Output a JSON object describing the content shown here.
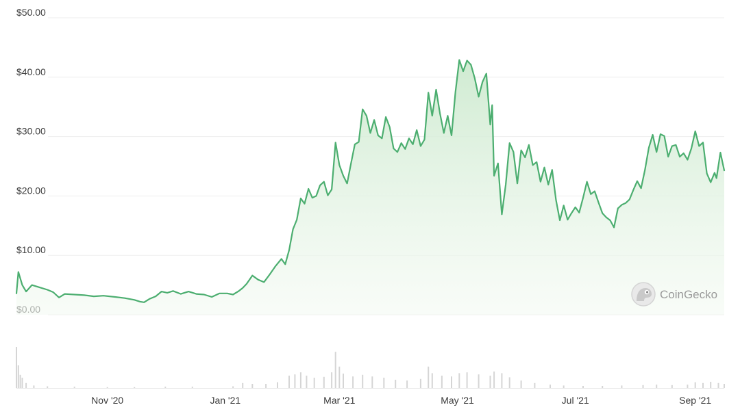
{
  "chart_data": {
    "type": "area",
    "y_unit_prefix": "$",
    "ylim": [
      0,
      50
    ],
    "y_ticks": [
      0,
      10,
      20,
      30,
      40,
      50
    ],
    "y_tick_labels": [
      "$0.00",
      "$10.00",
      "$20.00",
      "$30.00",
      "$40.00",
      "$50.00"
    ],
    "x_tick_labels": [
      "Nov '20",
      "Jan '21",
      "Mar '21",
      "May '21",
      "Jul '21",
      "Sep '21"
    ],
    "x_tick_dates": [
      "2020-11-01",
      "2021-01-01",
      "2021-03-01",
      "2021-05-01",
      "2021-07-01",
      "2021-09-01"
    ],
    "grid": true,
    "colors": {
      "line": "#4cae70",
      "fill": "#d7efd9",
      "volume": "#d5d5d5",
      "grid": "#eeeeee"
    },
    "watermark": {
      "text": "CoinGecko",
      "icon": "gecko-logo-icon"
    },
    "series": [
      {
        "points": [
          [
            "2020-09-15",
            3.6
          ],
          [
            "2020-09-16",
            7.2
          ],
          [
            "2020-09-18",
            5.0
          ],
          [
            "2020-09-20",
            3.9
          ],
          [
            "2020-09-23",
            5.0
          ],
          [
            "2020-09-27",
            4.6
          ],
          [
            "2020-10-01",
            4.2
          ],
          [
            "2020-10-04",
            3.8
          ],
          [
            "2020-10-07",
            2.9
          ],
          [
            "2020-10-10",
            3.5
          ],
          [
            "2020-10-15",
            3.4
          ],
          [
            "2020-10-20",
            3.3
          ],
          [
            "2020-10-25",
            3.1
          ],
          [
            "2020-10-30",
            3.2
          ],
          [
            "2020-11-05",
            3.0
          ],
          [
            "2020-11-10",
            2.8
          ],
          [
            "2020-11-15",
            2.5
          ],
          [
            "2020-11-18",
            2.2
          ],
          [
            "2020-11-20",
            2.1
          ],
          [
            "2020-11-23",
            2.7
          ],
          [
            "2020-11-26",
            3.1
          ],
          [
            "2020-11-29",
            3.9
          ],
          [
            "2020-12-02",
            3.7
          ],
          [
            "2020-12-05",
            4.0
          ],
          [
            "2020-12-09",
            3.5
          ],
          [
            "2020-12-13",
            3.9
          ],
          [
            "2020-12-17",
            3.5
          ],
          [
            "2020-12-21",
            3.4
          ],
          [
            "2020-12-25",
            3.0
          ],
          [
            "2020-12-29",
            3.6
          ],
          [
            "2021-01-02",
            3.6
          ],
          [
            "2021-01-05",
            3.4
          ],
          [
            "2021-01-08",
            4.0
          ],
          [
            "2021-01-10",
            4.5
          ],
          [
            "2021-01-12",
            5.2
          ],
          [
            "2021-01-15",
            6.6
          ],
          [
            "2021-01-18",
            5.9
          ],
          [
            "2021-01-21",
            5.5
          ],
          [
            "2021-01-24",
            6.8
          ],
          [
            "2021-01-27",
            8.2
          ],
          [
            "2021-01-30",
            9.4
          ],
          [
            "2021-02-01",
            8.5
          ],
          [
            "2021-02-03",
            10.9
          ],
          [
            "2021-02-05",
            14.4
          ],
          [
            "2021-02-07",
            16.0
          ],
          [
            "2021-02-09",
            19.6
          ],
          [
            "2021-02-11",
            18.7
          ],
          [
            "2021-02-13",
            21.2
          ],
          [
            "2021-02-15",
            19.7
          ],
          [
            "2021-02-17",
            20.0
          ],
          [
            "2021-02-19",
            21.8
          ],
          [
            "2021-02-21",
            22.4
          ],
          [
            "2021-02-23",
            20.1
          ],
          [
            "2021-02-25",
            21.1
          ],
          [
            "2021-02-27",
            29.0
          ],
          [
            "2021-03-01",
            25.2
          ],
          [
            "2021-03-03",
            23.4
          ],
          [
            "2021-03-05",
            22.1
          ],
          [
            "2021-03-07",
            25.5
          ],
          [
            "2021-03-09",
            28.7
          ],
          [
            "2021-03-11",
            29.1
          ],
          [
            "2021-03-13",
            34.6
          ],
          [
            "2021-03-15",
            33.5
          ],
          [
            "2021-03-17",
            30.6
          ],
          [
            "2021-03-19",
            32.8
          ],
          [
            "2021-03-21",
            30.2
          ],
          [
            "2021-03-23",
            29.7
          ],
          [
            "2021-03-25",
            33.3
          ],
          [
            "2021-03-27",
            31.6
          ],
          [
            "2021-03-29",
            28.0
          ],
          [
            "2021-03-31",
            27.4
          ],
          [
            "2021-04-02",
            28.9
          ],
          [
            "2021-04-04",
            27.9
          ],
          [
            "2021-04-06",
            29.7
          ],
          [
            "2021-04-08",
            28.7
          ],
          [
            "2021-04-10",
            31.1
          ],
          [
            "2021-04-12",
            28.4
          ],
          [
            "2021-04-14",
            29.5
          ],
          [
            "2021-04-16",
            37.4
          ],
          [
            "2021-04-18",
            33.5
          ],
          [
            "2021-04-20",
            37.9
          ],
          [
            "2021-04-22",
            33.9
          ],
          [
            "2021-04-24",
            30.6
          ],
          [
            "2021-04-26",
            33.5
          ],
          [
            "2021-04-28",
            30.2
          ],
          [
            "2021-04-30",
            37.5
          ],
          [
            "2021-05-02",
            42.9
          ],
          [
            "2021-05-04",
            41.0
          ],
          [
            "2021-05-06",
            42.8
          ],
          [
            "2021-05-08",
            42.1
          ],
          [
            "2021-05-10",
            39.8
          ],
          [
            "2021-05-12",
            36.7
          ],
          [
            "2021-05-14",
            39.2
          ],
          [
            "2021-05-16",
            40.6
          ],
          [
            "2021-05-18",
            32.0
          ],
          [
            "2021-05-19",
            35.3
          ],
          [
            "2021-05-20",
            23.4
          ],
          [
            "2021-05-22",
            25.5
          ],
          [
            "2021-05-24",
            16.9
          ],
          [
            "2021-05-26",
            21.9
          ],
          [
            "2021-05-28",
            28.9
          ],
          [
            "2021-05-30",
            27.4
          ],
          [
            "2021-06-01",
            22.1
          ],
          [
            "2021-06-03",
            27.7
          ],
          [
            "2021-06-05",
            26.5
          ],
          [
            "2021-06-07",
            28.6
          ],
          [
            "2021-06-09",
            25.2
          ],
          [
            "2021-06-11",
            25.7
          ],
          [
            "2021-06-13",
            22.4
          ],
          [
            "2021-06-15",
            24.8
          ],
          [
            "2021-06-17",
            21.9
          ],
          [
            "2021-06-19",
            24.4
          ],
          [
            "2021-06-21",
            19.3
          ],
          [
            "2021-06-23",
            15.9
          ],
          [
            "2021-06-25",
            18.4
          ],
          [
            "2021-06-27",
            16.0
          ],
          [
            "2021-06-29",
            17.1
          ],
          [
            "2021-07-01",
            18.1
          ],
          [
            "2021-07-03",
            17.2
          ],
          [
            "2021-07-05",
            19.7
          ],
          [
            "2021-07-07",
            22.4
          ],
          [
            "2021-07-09",
            20.3
          ],
          [
            "2021-07-11",
            20.8
          ],
          [
            "2021-07-13",
            18.9
          ],
          [
            "2021-07-15",
            17.1
          ],
          [
            "2021-07-17",
            16.4
          ],
          [
            "2021-07-19",
            15.9
          ],
          [
            "2021-07-21",
            14.7
          ],
          [
            "2021-07-23",
            17.9
          ],
          [
            "2021-07-25",
            18.5
          ],
          [
            "2021-07-27",
            18.8
          ],
          [
            "2021-07-29",
            19.4
          ],
          [
            "2021-07-31",
            21.0
          ],
          [
            "2021-08-02",
            22.5
          ],
          [
            "2021-08-04",
            21.3
          ],
          [
            "2021-08-06",
            24.4
          ],
          [
            "2021-08-08",
            28.1
          ],
          [
            "2021-08-10",
            30.3
          ],
          [
            "2021-08-12",
            27.4
          ],
          [
            "2021-08-14",
            30.4
          ],
          [
            "2021-08-16",
            30.1
          ],
          [
            "2021-08-18",
            26.6
          ],
          [
            "2021-08-20",
            28.4
          ],
          [
            "2021-08-22",
            28.6
          ],
          [
            "2021-08-24",
            26.6
          ],
          [
            "2021-08-26",
            27.2
          ],
          [
            "2021-08-28",
            26.1
          ],
          [
            "2021-08-30",
            28.0
          ],
          [
            "2021-09-01",
            30.9
          ],
          [
            "2021-09-03",
            28.4
          ],
          [
            "2021-09-05",
            29.0
          ],
          [
            "2021-09-07",
            23.8
          ],
          [
            "2021-09-09",
            22.3
          ],
          [
            "2021-09-11",
            23.9
          ],
          [
            "2021-09-12",
            23.0
          ],
          [
            "2021-09-14",
            27.3
          ],
          [
            "2021-09-16",
            24.3
          ]
        ]
      }
    ],
    "volume_bars": [
      [
        "2020-09-15",
        1.0
      ],
      [
        "2020-09-16",
        0.55
      ],
      [
        "2020-09-17",
        0.32
      ],
      [
        "2020-09-18",
        0.25
      ],
      [
        "2020-09-20",
        0.12
      ],
      [
        "2020-09-24",
        0.06
      ],
      [
        "2020-10-01",
        0.04
      ],
      [
        "2020-10-15",
        0.03
      ],
      [
        "2020-11-01",
        0.02
      ],
      [
        "2020-11-15",
        0.02
      ],
      [
        "2020-12-01",
        0.03
      ],
      [
        "2020-12-15",
        0.03
      ],
      [
        "2021-01-05",
        0.04
      ],
      [
        "2021-01-10",
        0.12
      ],
      [
        "2021-01-15",
        0.1
      ],
      [
        "2021-01-22",
        0.1
      ],
      [
        "2021-01-28",
        0.14
      ],
      [
        "2021-02-03",
        0.3
      ],
      [
        "2021-02-06",
        0.33
      ],
      [
        "2021-02-09",
        0.38
      ],
      [
        "2021-02-12",
        0.3
      ],
      [
        "2021-02-16",
        0.25
      ],
      [
        "2021-02-21",
        0.27
      ],
      [
        "2021-02-25",
        0.38
      ],
      [
        "2021-02-27",
        0.88
      ],
      [
        "2021-03-01",
        0.52
      ],
      [
        "2021-03-03",
        0.35
      ],
      [
        "2021-03-08",
        0.28
      ],
      [
        "2021-03-13",
        0.32
      ],
      [
        "2021-03-18",
        0.28
      ],
      [
        "2021-03-24",
        0.25
      ],
      [
        "2021-03-30",
        0.2
      ],
      [
        "2021-04-05",
        0.18
      ],
      [
        "2021-04-12",
        0.22
      ],
      [
        "2021-04-16",
        0.52
      ],
      [
        "2021-04-18",
        0.36
      ],
      [
        "2021-04-23",
        0.3
      ],
      [
        "2021-04-28",
        0.28
      ],
      [
        "2021-05-02",
        0.36
      ],
      [
        "2021-05-06",
        0.38
      ],
      [
        "2021-05-12",
        0.33
      ],
      [
        "2021-05-18",
        0.3
      ],
      [
        "2021-05-20",
        0.4
      ],
      [
        "2021-05-24",
        0.36
      ],
      [
        "2021-05-28",
        0.26
      ],
      [
        "2021-06-03",
        0.18
      ],
      [
        "2021-06-10",
        0.12
      ],
      [
        "2021-06-18",
        0.08
      ],
      [
        "2021-06-25",
        0.06
      ],
      [
        "2021-07-05",
        0.05
      ],
      [
        "2021-07-15",
        0.05
      ],
      [
        "2021-07-25",
        0.06
      ],
      [
        "2021-08-05",
        0.07
      ],
      [
        "2021-08-12",
        0.08
      ],
      [
        "2021-08-20",
        0.07
      ],
      [
        "2021-08-28",
        0.08
      ],
      [
        "2021-09-01",
        0.14
      ],
      [
        "2021-09-05",
        0.12
      ],
      [
        "2021-09-09",
        0.15
      ],
      [
        "2021-09-13",
        0.12
      ],
      [
        "2021-09-16",
        0.1
      ]
    ]
  }
}
